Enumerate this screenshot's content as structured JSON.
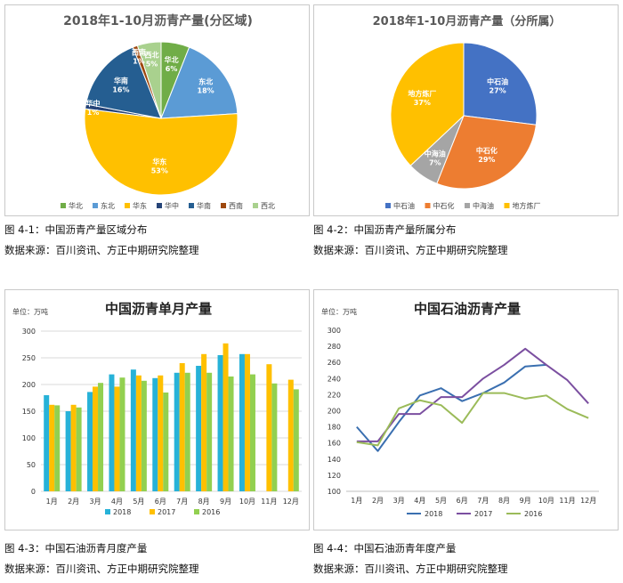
{
  "captions": {
    "fig1": "图 4-1：中国沥青产量区域分布",
    "fig2": "图 4-2：中国沥青产量所属分布",
    "fig3": "图 4-3：中国石油沥青月度产量",
    "fig4": "图 4-4：中国石油沥青年度产量",
    "source": "数据来源：百川资讯、方正中期研究院整理"
  },
  "chart_data": [
    {
      "type": "pie",
      "title": "2018年1-10月沥青产量(分区域)",
      "labels": [
        "华北",
        "东北",
        "华东",
        "华中",
        "华南",
        "西南",
        "西北"
      ],
      "values": [
        6,
        18,
        53,
        1,
        16,
        1,
        5
      ],
      "value_labels": [
        "6%",
        "18%",
        "53%",
        "1%",
        "16%",
        "1%",
        "5%"
      ],
      "colors": [
        "#70ad47",
        "#5b9bd5",
        "#ffc000",
        "#264478",
        "#255e91",
        "#9e480e",
        "#a9d18e"
      ],
      "legend": "bottom"
    },
    {
      "type": "pie",
      "title": "2018年1-10月沥青产量（分所属）",
      "labels": [
        "中石油",
        "中石化",
        "中海油",
        "地方炼厂"
      ],
      "values": [
        27,
        29,
        7,
        37
      ],
      "value_labels": [
        "27%",
        "29%",
        "7%",
        "37%"
      ],
      "colors": [
        "#4472c4",
        "#ed7d31",
        "#a5a5a5",
        "#ffc000"
      ],
      "legend": "bottom"
    },
    {
      "type": "bar",
      "title": "中国沥青单月产量",
      "unit_label": "单位：万吨",
      "categories": [
        "1月",
        "2月",
        "3月",
        "4月",
        "5月",
        "6月",
        "7月",
        "8月",
        "9月",
        "10月",
        "11月",
        "12月"
      ],
      "series": [
        {
          "name": "2018",
          "color": "#27b2d8",
          "values": [
            180,
            150,
            186,
            219,
            228,
            212,
            222,
            235,
            255,
            257,
            null,
            null
          ]
        },
        {
          "name": "2017",
          "color": "#ffc000",
          "values": [
            162,
            162,
            196,
            196,
            217,
            217,
            240,
            257,
            277,
            257,
            238,
            209
          ]
        },
        {
          "name": "2016",
          "color": "#92d050",
          "values": [
            161,
            157,
            203,
            213,
            207,
            185,
            222,
            222,
            215,
            219,
            202,
            191
          ]
        }
      ],
      "y_ticks": [
        "0",
        "50",
        "100",
        "150",
        "200",
        "250",
        "300"
      ],
      "ylim": [
        0,
        300
      ],
      "grid": true,
      "legend": "bottom"
    },
    {
      "type": "line",
      "title": "中国石油沥青产量",
      "unit_label": "单位：万吨",
      "categories": [
        "1月",
        "2月",
        "3月",
        "4月",
        "5月",
        "6月",
        "7月",
        "8月",
        "9月",
        "10月",
        "11月",
        "12月"
      ],
      "series": [
        {
          "name": "2018",
          "color": "#3a6fb0",
          "values": [
            180,
            150,
            186,
            219,
            228,
            212,
            222,
            235,
            255,
            257,
            null,
            null
          ]
        },
        {
          "name": "2017",
          "color": "#7b4fa0",
          "values": [
            162,
            162,
            196,
            196,
            217,
            217,
            240,
            257,
            277,
            257,
            238,
            209
          ]
        },
        {
          "name": "2016",
          "color": "#9bbb59",
          "values": [
            161,
            157,
            203,
            213,
            207,
            185,
            222,
            222,
            215,
            219,
            202,
            191
          ]
        }
      ],
      "y_ticks": [
        "100",
        "120",
        "140",
        "160",
        "180",
        "200",
        "220",
        "240",
        "260",
        "280",
        "300"
      ],
      "ylim": [
        100,
        300
      ],
      "grid": false,
      "legend": "bottom"
    }
  ]
}
